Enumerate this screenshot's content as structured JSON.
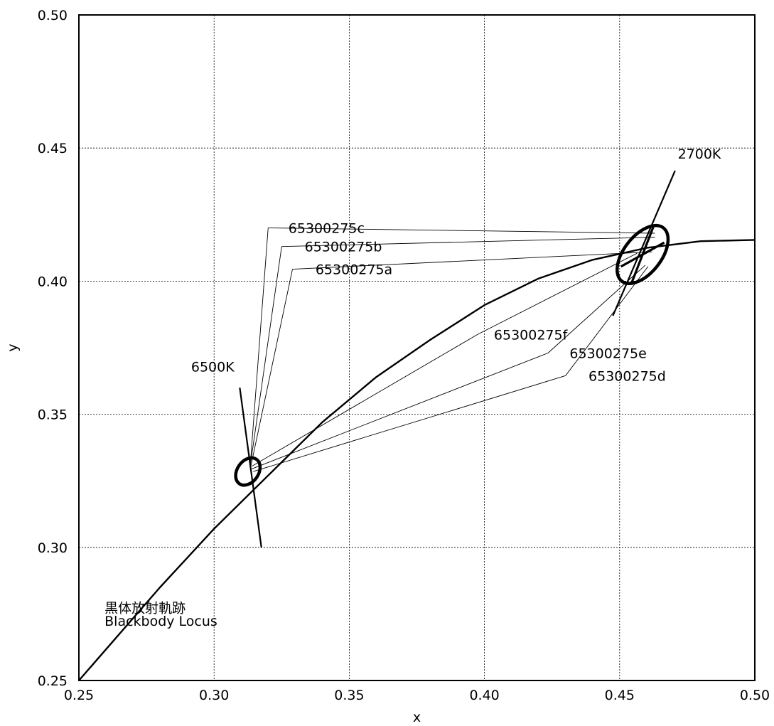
{
  "chart_data": {
    "type": "line",
    "title": "",
    "xlabel": "x",
    "ylabel": "y",
    "xlim": [
      0.25,
      0.5
    ],
    "ylim": [
      0.25,
      0.5
    ],
    "grid": true,
    "x_ticks": [
      "0.25",
      "0.30",
      "0.35",
      "0.40",
      "0.45",
      "0.50"
    ],
    "y_ticks": [
      "0.25",
      "0.30",
      "0.35",
      "0.40",
      "0.45",
      "0.50"
    ],
    "series": [
      {
        "name": "黒体放射軌跡 Blackbody Locus",
        "x": [
          0.25,
          0.28,
          0.3,
          0.32,
          0.34,
          0.36,
          0.38,
          0.4,
          0.42,
          0.44,
          0.46,
          0.48,
          0.5
        ],
        "y": [
          0.25,
          0.285,
          0.307,
          0.327,
          0.347,
          0.364,
          0.378,
          0.391,
          0.401,
          0.408,
          0.4125,
          0.415,
          0.4155
        ]
      }
    ],
    "cct_lines": [
      {
        "label": "6500K",
        "x1": 0.3095,
        "y1": 0.36,
        "x2": 0.3175,
        "y2": 0.3
      },
      {
        "label": "2700K",
        "x1": 0.4475,
        "y1": 0.387,
        "x2": 0.4705,
        "y2": 0.4415
      }
    ],
    "ellipses": [
      {
        "cx": 0.3125,
        "cy": 0.3285,
        "rx": 0.0055,
        "ry": 0.004,
        "angle_deg": -55
      },
      {
        "cx": 0.4585,
        "cy": 0.41,
        "rx": 0.0125,
        "ry": 0.007,
        "angle_deg": -52
      }
    ],
    "spokes_2700K": [
      {
        "x": 0.4625,
        "y": 0.4205
      },
      {
        "x": 0.4545,
        "y": 0.3995
      },
      {
        "x": 0.4665,
        "y": 0.4145
      },
      {
        "x": 0.4505,
        "y": 0.4055
      }
    ],
    "sample_points": [
      {
        "label": "65300275c",
        "label_x": 0.3275,
        "label_y": 0.42,
        "ux": 0.32,
        "uy": 0.42,
        "from_x": 0.463,
        "from_y": 0.418,
        "to_x": 0.3135,
        "to_y": 0.3325
      },
      {
        "label": "65300275b",
        "label_x": 0.3335,
        "label_y": 0.413,
        "ux": 0.325,
        "uy": 0.413,
        "from_x": 0.463,
        "from_y": 0.4165,
        "to_x": 0.3135,
        "to_y": 0.3315
      },
      {
        "label": "65300275a",
        "label_x": 0.3375,
        "label_y": 0.4045,
        "ux": 0.329,
        "uy": 0.4045,
        "from_x": 0.462,
        "from_y": 0.411,
        "to_x": 0.3135,
        "to_y": 0.33
      },
      {
        "label": "65300275f",
        "label_x": 0.4035,
        "label_y": 0.38,
        "ux": 0.3975,
        "uy": 0.38,
        "from_x": 0.4565,
        "from_y": 0.4105,
        "to_x": 0.314,
        "to_y": 0.3305
      },
      {
        "label": "65300275e",
        "label_x": 0.4315,
        "label_y": 0.373,
        "ux": 0.4235,
        "uy": 0.373,
        "from_x": 0.4595,
        "from_y": 0.406,
        "to_x": 0.314,
        "to_y": 0.3295
      },
      {
        "label": "65300275d",
        "label_x": 0.4385,
        "label_y": 0.3645,
        "ux": 0.43,
        "uy": 0.3645,
        "from_x": 0.4605,
        "from_y": 0.4055,
        "to_x": 0.3145,
        "to_y": 0.3285
      }
    ],
    "annotations": [
      {
        "text": "6500K",
        "x": 0.2915,
        "y": 0.366
      },
      {
        "text": "2700K",
        "x": 0.4715,
        "y": 0.446
      },
      {
        "text": "黒体放射軌跡",
        "x": 0.2595,
        "y": 0.2755
      },
      {
        "text": "Blackbody Locus",
        "x": 0.2595,
        "y": 0.2705
      }
    ]
  }
}
